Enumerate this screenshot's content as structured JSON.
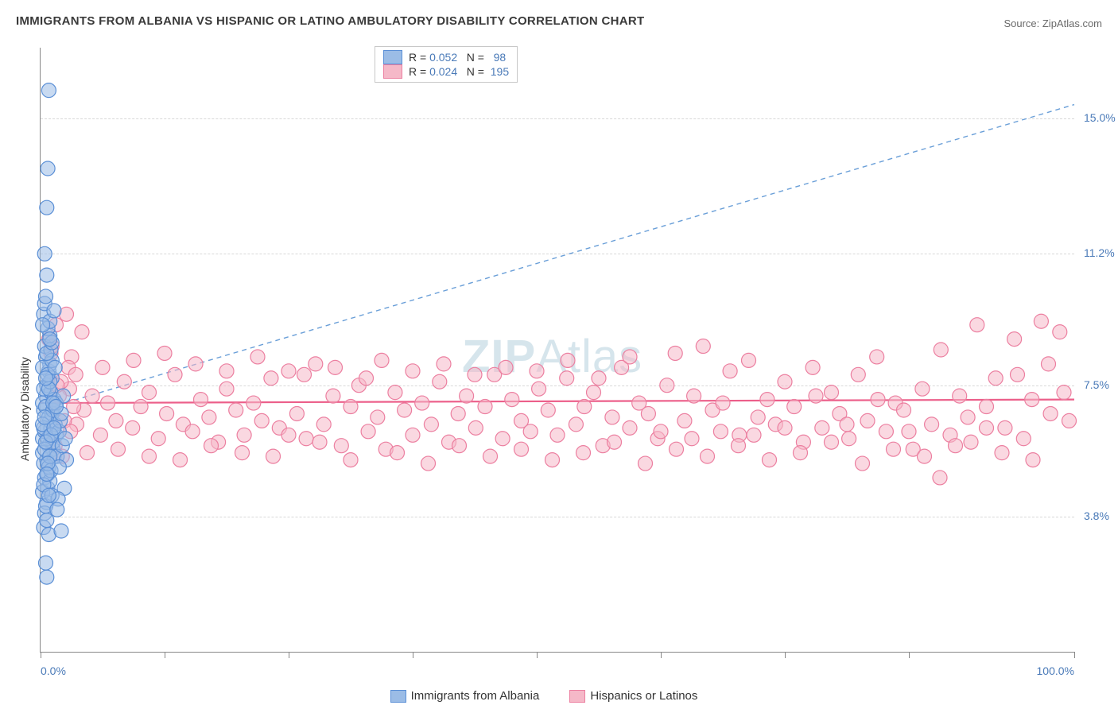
{
  "title": "IMMIGRANTS FROM ALBANIA VS HISPANIC OR LATINO AMBULATORY DISABILITY CORRELATION CHART",
  "source": "Source: ZipAtlas.com",
  "watermark_bold": "ZIP",
  "watermark_light": "Atlas",
  "ylabel": "Ambulatory Disability",
  "chart": {
    "type": "scatter",
    "background_color": "#ffffff",
    "grid_color": "#d8d8d8",
    "axis_color": "#888888",
    "xlim": [
      0,
      100
    ],
    "ylim": [
      0,
      17
    ],
    "xtick_positions": [
      0,
      12,
      24,
      36,
      48,
      60,
      72,
      84,
      100
    ],
    "xtick_labels": {
      "0": "0.0%",
      "100": "100.0%"
    },
    "xtick_label_color": "#4a7ab8",
    "ytick_values": [
      3.8,
      7.5,
      11.2,
      15.0
    ],
    "ytick_labels": [
      "3.8%",
      "7.5%",
      "11.2%",
      "15.0%"
    ],
    "ytick_label_color": "#4a7ab8",
    "ylabel_color": "#333333",
    "point_radius": 9,
    "point_opacity": 0.55,
    "series": [
      {
        "name": "Immigrants from Albania",
        "color_fill": "#9bbce6",
        "color_stroke": "#5a8fd6",
        "R": "0.052",
        "N": "98",
        "trend": {
          "x1": 0,
          "y1": 6.8,
          "x2": 100,
          "y2": 15.4,
          "dash": "6,5",
          "width": 1.4,
          "color": "#6a9fd8"
        },
        "points": [
          [
            0.2,
            6.0
          ],
          [
            0.4,
            6.2
          ],
          [
            0.6,
            5.4
          ],
          [
            0.3,
            6.8
          ],
          [
            0.8,
            5.8
          ],
          [
            1.0,
            6.3
          ],
          [
            0.5,
            7.2
          ],
          [
            0.7,
            5.0
          ],
          [
            0.9,
            6.5
          ],
          [
            1.2,
            5.7
          ],
          [
            0.4,
            4.9
          ],
          [
            0.6,
            7.5
          ],
          [
            1.5,
            6.1
          ],
          [
            0.3,
            5.3
          ],
          [
            0.8,
            7.9
          ],
          [
            1.1,
            6.7
          ],
          [
            0.5,
            8.3
          ],
          [
            0.2,
            7.0
          ],
          [
            0.7,
            4.6
          ],
          [
            1.3,
            5.5
          ],
          [
            0.4,
            8.6
          ],
          [
            0.9,
            8.9
          ],
          [
            0.6,
            4.2
          ],
          [
            1.0,
            7.3
          ],
          [
            0.3,
            9.5
          ],
          [
            0.5,
            6.9
          ],
          [
            0.8,
            5.2
          ],
          [
            1.4,
            6.4
          ],
          [
            0.2,
            4.5
          ],
          [
            0.7,
            9.1
          ],
          [
            1.1,
            7.7
          ],
          [
            0.4,
            3.9
          ],
          [
            0.6,
            10.6
          ],
          [
            0.9,
            8.1
          ],
          [
            0.3,
            3.5
          ],
          [
            1.2,
            5.9
          ],
          [
            0.5,
            4.1
          ],
          [
            0.8,
            6.6
          ],
          [
            1.0,
            8.5
          ],
          [
            0.4,
            9.8
          ],
          [
            0.7,
            13.6
          ],
          [
            0.2,
            5.6
          ],
          [
            0.9,
            4.8
          ],
          [
            1.3,
            7.1
          ],
          [
            0.6,
            12.5
          ],
          [
            0.5,
            10.0
          ],
          [
            0.8,
            3.3
          ],
          [
            1.1,
            4.4
          ],
          [
            0.3,
            7.4
          ],
          [
            0.4,
            11.2
          ],
          [
            0.7,
            6.0
          ],
          [
            1.0,
            5.1
          ],
          [
            0.2,
            8.0
          ],
          [
            0.9,
            7.6
          ],
          [
            0.6,
            2.1
          ],
          [
            0.5,
            2.5
          ],
          [
            0.8,
            15.8
          ],
          [
            1.2,
            6.8
          ],
          [
            0.3,
            6.3
          ],
          [
            0.4,
            5.7
          ],
          [
            0.7,
            7.8
          ],
          [
            1.1,
            8.2
          ],
          [
            0.9,
            9.3
          ],
          [
            0.6,
            3.7
          ],
          [
            1.6,
            5.5
          ],
          [
            2.0,
            3.4
          ],
          [
            1.8,
            6.2
          ],
          [
            2.3,
            4.6
          ],
          [
            1.5,
            7.0
          ],
          [
            2.1,
            5.8
          ],
          [
            1.9,
            6.5
          ],
          [
            2.4,
            6.0
          ],
          [
            1.7,
            4.3
          ],
          [
            2.2,
            7.2
          ],
          [
            1.4,
            8.0
          ],
          [
            2.5,
            5.4
          ],
          [
            1.3,
            9.6
          ],
          [
            1.6,
            4.0
          ],
          [
            2.0,
            6.7
          ],
          [
            1.8,
            5.2
          ],
          [
            0.2,
            6.4
          ],
          [
            0.5,
            5.9
          ],
          [
            0.8,
            7.4
          ],
          [
            1.0,
            6.1
          ],
          [
            0.3,
            4.7
          ],
          [
            0.6,
            8.4
          ],
          [
            0.9,
            5.5
          ],
          [
            1.2,
            7.0
          ],
          [
            0.4,
            6.6
          ],
          [
            0.7,
            5.3
          ],
          [
            1.1,
            8.7
          ],
          [
            0.2,
            9.2
          ],
          [
            0.5,
            7.7
          ],
          [
            0.8,
            4.4
          ],
          [
            1.3,
            6.3
          ],
          [
            0.6,
            5.0
          ],
          [
            0.9,
            8.8
          ],
          [
            1.5,
            6.9
          ]
        ]
      },
      {
        "name": "Hispanics or Latinos",
        "color_fill": "#f5b8c8",
        "color_stroke": "#ec7fa0",
        "R": "0.024",
        "N": "195",
        "trend": {
          "x1": 0,
          "y1": 7.0,
          "x2": 100,
          "y2": 7.1,
          "dash": "none",
          "width": 2.2,
          "color": "#ec5f8a"
        },
        "points": [
          [
            2.8,
            7.4
          ],
          [
            3.5,
            6.4
          ],
          [
            4.2,
            6.8
          ],
          [
            5.0,
            7.2
          ],
          [
            5.8,
            6.1
          ],
          [
            6.5,
            7.0
          ],
          [
            7.3,
            6.5
          ],
          [
            8.1,
            7.6
          ],
          [
            8.9,
            6.3
          ],
          [
            9.7,
            6.9
          ],
          [
            10.5,
            7.3
          ],
          [
            11.4,
            6.0
          ],
          [
            12.2,
            6.7
          ],
          [
            13.0,
            7.8
          ],
          [
            13.8,
            6.4
          ],
          [
            14.7,
            6.2
          ],
          [
            15.5,
            7.1
          ],
          [
            16.3,
            6.6
          ],
          [
            17.2,
            5.9
          ],
          [
            18.0,
            7.4
          ],
          [
            18.9,
            6.8
          ],
          [
            19.7,
            6.1
          ],
          [
            20.6,
            7.0
          ],
          [
            21.4,
            6.5
          ],
          [
            22.3,
            7.7
          ],
          [
            23.1,
            6.3
          ],
          [
            24.0,
            7.9
          ],
          [
            24.8,
            6.7
          ],
          [
            25.7,
            6.0
          ],
          [
            26.6,
            8.1
          ],
          [
            27.4,
            6.4
          ],
          [
            28.3,
            7.2
          ],
          [
            29.1,
            5.8
          ],
          [
            30.0,
            6.9
          ],
          [
            30.8,
            7.5
          ],
          [
            31.7,
            6.2
          ],
          [
            32.6,
            6.6
          ],
          [
            33.4,
            5.7
          ],
          [
            34.3,
            7.3
          ],
          [
            35.2,
            6.8
          ],
          [
            36.0,
            6.1
          ],
          [
            36.9,
            7.0
          ],
          [
            37.8,
            6.4
          ],
          [
            38.6,
            7.6
          ],
          [
            39.5,
            5.9
          ],
          [
            40.4,
            6.7
          ],
          [
            41.2,
            7.2
          ],
          [
            42.1,
            6.3
          ],
          [
            43.0,
            6.9
          ],
          [
            43.9,
            7.8
          ],
          [
            44.7,
            6.0
          ],
          [
            45.6,
            7.1
          ],
          [
            46.5,
            6.5
          ],
          [
            47.4,
            6.2
          ],
          [
            48.2,
            7.4
          ],
          [
            49.1,
            6.8
          ],
          [
            50.0,
            6.1
          ],
          [
            50.9,
            7.7
          ],
          [
            51.8,
            6.4
          ],
          [
            52.6,
            6.9
          ],
          [
            53.5,
            7.3
          ],
          [
            54.4,
            5.8
          ],
          [
            55.3,
            6.6
          ],
          [
            56.2,
            8.0
          ],
          [
            57.0,
            6.3
          ],
          [
            57.9,
            7.0
          ],
          [
            58.8,
            6.7
          ],
          [
            59.7,
            6.0
          ],
          [
            60.6,
            7.5
          ],
          [
            61.4,
            8.4
          ],
          [
            62.3,
            6.5
          ],
          [
            63.2,
            7.2
          ],
          [
            64.1,
            8.6
          ],
          [
            65.0,
            6.8
          ],
          [
            65.8,
            6.2
          ],
          [
            66.7,
            7.9
          ],
          [
            67.6,
            6.1
          ],
          [
            68.5,
            8.2
          ],
          [
            69.4,
            6.6
          ],
          [
            70.3,
            7.1
          ],
          [
            71.1,
            6.4
          ],
          [
            72.0,
            7.6
          ],
          [
            72.9,
            6.9
          ],
          [
            73.8,
            5.9
          ],
          [
            74.7,
            8.0
          ],
          [
            75.6,
            6.3
          ],
          [
            76.5,
            7.3
          ],
          [
            77.3,
            6.7
          ],
          [
            78.2,
            6.0
          ],
          [
            79.1,
            7.8
          ],
          [
            80.0,
            6.5
          ],
          [
            80.9,
            8.3
          ],
          [
            81.8,
            6.2
          ],
          [
            82.7,
            7.0
          ],
          [
            83.5,
            6.8
          ],
          [
            84.4,
            5.7
          ],
          [
            85.3,
            7.4
          ],
          [
            86.2,
            6.4
          ],
          [
            87.1,
            8.5
          ],
          [
            88.0,
            6.1
          ],
          [
            88.9,
            7.2
          ],
          [
            89.7,
            6.6
          ],
          [
            90.6,
            9.2
          ],
          [
            91.5,
            6.9
          ],
          [
            92.4,
            7.7
          ],
          [
            93.3,
            6.3
          ],
          [
            94.2,
            8.8
          ],
          [
            95.1,
            6.0
          ],
          [
            95.9,
            7.1
          ],
          [
            96.8,
            9.3
          ],
          [
            97.7,
            6.7
          ],
          [
            98.6,
            9.0
          ],
          [
            99.5,
            6.5
          ],
          [
            3.0,
            8.3
          ],
          [
            4.5,
            5.6
          ],
          [
            6.0,
            8.0
          ],
          [
            7.5,
            5.7
          ],
          [
            9.0,
            8.2
          ],
          [
            10.5,
            5.5
          ],
          [
            12.0,
            8.4
          ],
          [
            13.5,
            5.4
          ],
          [
            15.0,
            8.1
          ],
          [
            16.5,
            5.8
          ],
          [
            18.0,
            7.9
          ],
          [
            19.5,
            5.6
          ],
          [
            21.0,
            8.3
          ],
          [
            22.5,
            5.5
          ],
          [
            24.0,
            6.1
          ],
          [
            25.5,
            7.8
          ],
          [
            27.0,
            5.9
          ],
          [
            28.5,
            8.0
          ],
          [
            30.0,
            5.4
          ],
          [
            31.5,
            7.7
          ],
          [
            33.0,
            8.2
          ],
          [
            34.5,
            5.6
          ],
          [
            36.0,
            7.9
          ],
          [
            37.5,
            5.3
          ],
          [
            39.0,
            8.1
          ],
          [
            40.5,
            5.8
          ],
          [
            42.0,
            7.8
          ],
          [
            43.5,
            5.5
          ],
          [
            45.0,
            8.0
          ],
          [
            46.5,
            5.7
          ],
          [
            48.0,
            7.9
          ],
          [
            49.5,
            5.4
          ],
          [
            51.0,
            8.2
          ],
          [
            52.5,
            5.6
          ],
          [
            54.0,
            7.7
          ],
          [
            55.5,
            5.9
          ],
          [
            57.0,
            8.3
          ],
          [
            58.5,
            5.3
          ],
          [
            60.0,
            6.2
          ],
          [
            61.5,
            5.7
          ],
          [
            63.0,
            6.0
          ],
          [
            64.5,
            5.5
          ],
          [
            66.0,
            7.0
          ],
          [
            67.5,
            5.8
          ],
          [
            69.0,
            6.1
          ],
          [
            70.5,
            5.4
          ],
          [
            72.0,
            6.3
          ],
          [
            73.5,
            5.6
          ],
          [
            75.0,
            7.2
          ],
          [
            76.5,
            5.9
          ],
          [
            78.0,
            6.4
          ],
          [
            79.5,
            5.3
          ],
          [
            81.0,
            7.1
          ],
          [
            82.5,
            5.7
          ],
          [
            84.0,
            6.2
          ],
          [
            85.5,
            5.5
          ],
          [
            87.0,
            4.9
          ],
          [
            88.5,
            5.8
          ],
          [
            90.0,
            5.9
          ],
          [
            91.5,
            6.3
          ],
          [
            93.0,
            5.6
          ],
          [
            94.5,
            7.8
          ],
          [
            96.0,
            5.4
          ],
          [
            97.5,
            8.1
          ],
          [
            99.0,
            7.3
          ],
          [
            2.5,
            9.5
          ],
          [
            4.0,
            9.0
          ],
          [
            0.8,
            8.8
          ],
          [
            1.5,
            9.2
          ],
          [
            1.0,
            8.4
          ],
          [
            2.0,
            7.6
          ],
          [
            1.2,
            6.8
          ],
          [
            1.8,
            7.2
          ],
          [
            2.3,
            6.5
          ],
          [
            2.7,
            8.0
          ],
          [
            1.4,
            5.8
          ],
          [
            3.2,
            6.9
          ],
          [
            1.6,
            7.5
          ],
          [
            2.9,
            6.2
          ],
          [
            1.1,
            8.6
          ],
          [
            2.1,
            5.5
          ],
          [
            3.4,
            7.8
          ]
        ]
      }
    ]
  },
  "legend_top": {
    "R_label": "R =",
    "N_label": "N =",
    "label_color": "#333333",
    "value_color": "#4a7ab8"
  },
  "legend_bottom": {
    "items": [
      {
        "label": "Immigrants from Albania",
        "fill": "#9bbce6",
        "stroke": "#5a8fd6"
      },
      {
        "label": "Hispanics or Latinos",
        "fill": "#f5b8c8",
        "stroke": "#ec7fa0"
      }
    ]
  }
}
